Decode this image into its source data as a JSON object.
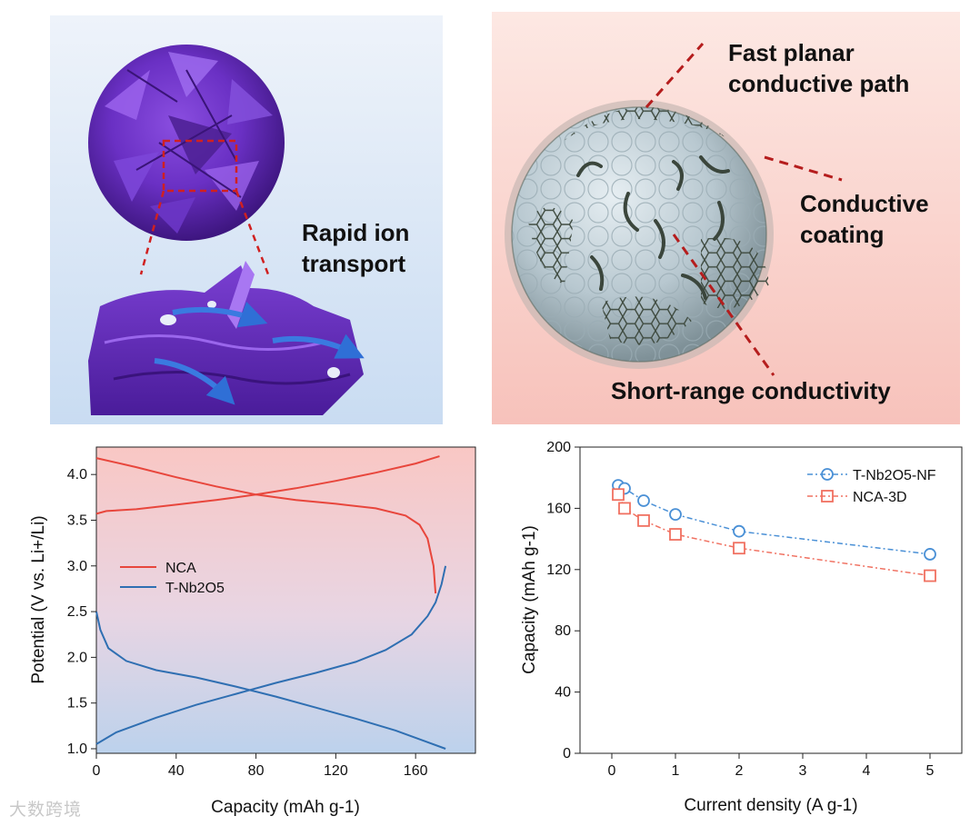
{
  "panel_a": {
    "label": "Rapid ion\ntransport"
  },
  "panel_b": {
    "label_path": "Fast planar\nconductive path",
    "label_coating": "Conductive\ncoating",
    "label_short": "Short-range conductivity"
  },
  "watermark": "大数跨境",
  "chart_data": [
    {
      "type": "line",
      "xlabel": "Capacity (mAh g-1)",
      "ylabel": "Potential (V vs. Li+/Li)",
      "xlim": [
        0,
        190
      ],
      "ylim": [
        0.95,
        4.3
      ],
      "xticks": [
        "0",
        "40",
        "80",
        "120",
        "160"
      ],
      "yticks": [
        "1.0",
        "1.5",
        "2.0",
        "2.5",
        "3.0",
        "3.5",
        "4.0"
      ],
      "legend": [
        "NCA",
        "T-Nb2O5"
      ],
      "legend_position": "center-left",
      "series": [
        {
          "name": "NCA",
          "branch": "charge",
          "color": "#e8463c",
          "points": [
            [
              0,
              3.57
            ],
            [
              5,
              3.6
            ],
            [
              20,
              3.62
            ],
            [
              40,
              3.67
            ],
            [
              60,
              3.72
            ],
            [
              80,
              3.78
            ],
            [
              100,
              3.85
            ],
            [
              120,
              3.93
            ],
            [
              140,
              4.02
            ],
            [
              160,
              4.12
            ],
            [
              172,
              4.2
            ]
          ]
        },
        {
          "name": "NCA",
          "branch": "discharge",
          "color": "#e8463c",
          "points": [
            [
              0,
              4.18
            ],
            [
              20,
              4.08
            ],
            [
              40,
              3.97
            ],
            [
              60,
              3.87
            ],
            [
              80,
              3.78
            ],
            [
              100,
              3.72
            ],
            [
              120,
              3.68
            ],
            [
              140,
              3.63
            ],
            [
              155,
              3.55
            ],
            [
              162,
              3.45
            ],
            [
              166,
              3.3
            ],
            [
              169,
              3.0
            ],
            [
              170,
              2.7
            ]
          ]
        },
        {
          "name": "T-Nb2O5",
          "branch": "lithiation",
          "color": "#2f6fb2",
          "points": [
            [
              0,
              2.5
            ],
            [
              2,
              2.3
            ],
            [
              6,
              2.1
            ],
            [
              15,
              1.96
            ],
            [
              30,
              1.86
            ],
            [
              50,
              1.78
            ],
            [
              70,
              1.68
            ],
            [
              90,
              1.57
            ],
            [
              110,
              1.45
            ],
            [
              130,
              1.33
            ],
            [
              150,
              1.2
            ],
            [
              165,
              1.08
            ],
            [
              175,
              1.0
            ]
          ]
        },
        {
          "name": "T-Nb2O5",
          "branch": "delithiation",
          "color": "#2f6fb2",
          "points": [
            [
              0,
              1.05
            ],
            [
              10,
              1.18
            ],
            [
              30,
              1.34
            ],
            [
              50,
              1.48
            ],
            [
              70,
              1.6
            ],
            [
              90,
              1.72
            ],
            [
              110,
              1.83
            ],
            [
              130,
              1.95
            ],
            [
              145,
              2.08
            ],
            [
              158,
              2.25
            ],
            [
              166,
              2.45
            ],
            [
              170,
              2.6
            ],
            [
              173,
              2.8
            ],
            [
              175,
              3.0
            ]
          ]
        }
      ]
    },
    {
      "type": "line",
      "xlabel": "Current density (A g-1)",
      "ylabel": "Capacity (mAh g-1)",
      "xlim": [
        -0.5,
        5.5
      ],
      "ylim": [
        0,
        200
      ],
      "xticks": [
        "0",
        "1",
        "2",
        "3",
        "4",
        "5"
      ],
      "yticks": [
        "0",
        "40",
        "80",
        "120",
        "160",
        "200"
      ],
      "legend_position": "top-right",
      "series": [
        {
          "name": "T-Nb2O5-NF",
          "color": "#4a90d6",
          "marker": "circle",
          "x": [
            0.1,
            0.2,
            0.5,
            1,
            2,
            5
          ],
          "y": [
            175,
            173,
            165,
            156,
            145,
            130
          ]
        },
        {
          "name": "NCA-3D",
          "color": "#f07060",
          "marker": "square",
          "x": [
            0.1,
            0.2,
            0.5,
            1,
            2,
            5
          ],
          "y": [
            169,
            160,
            152,
            143,
            134,
            116
          ]
        }
      ]
    }
  ]
}
